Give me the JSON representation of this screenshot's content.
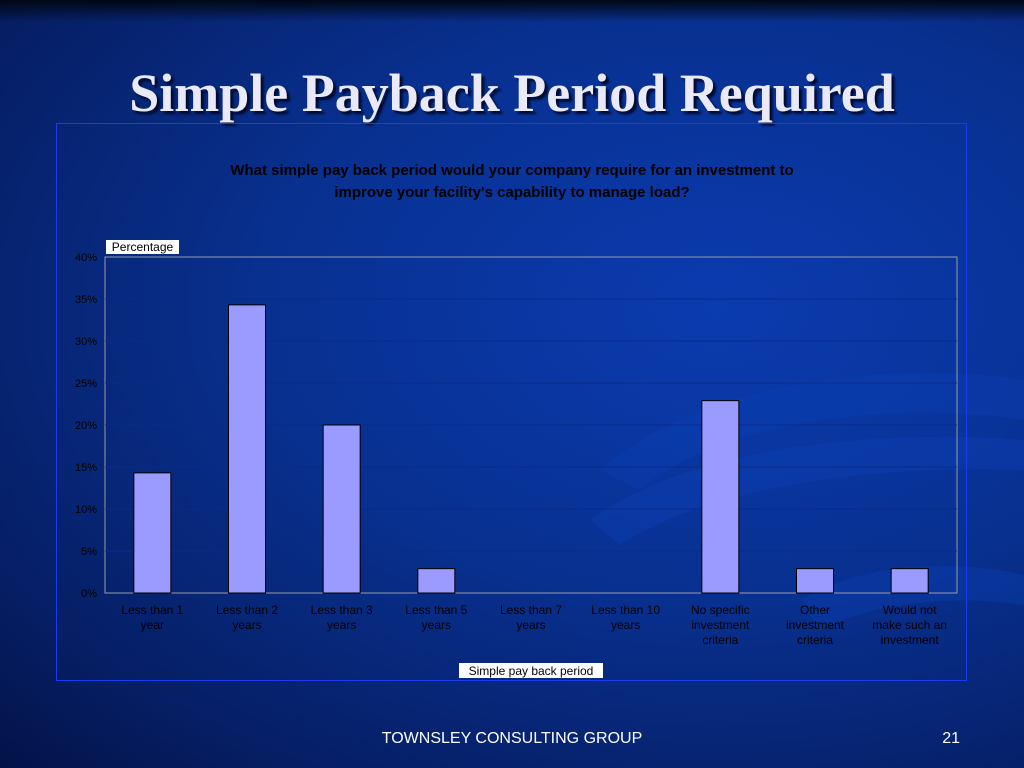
{
  "slide": {
    "title": "Simple Payback Period Required",
    "footer": "TOWNSLEY CONSULTING GROUP",
    "page_number": "21"
  },
  "colors": {
    "bar_fill": "#9a9aff",
    "bar_stroke": "#000000",
    "frame": "#1a3cf0",
    "background": "#08308f"
  },
  "chart_data": {
    "type": "bar",
    "title_lines": [
      "What simple pay back period would your company require for an investment to",
      "improve your facility's capability to manage load?"
    ],
    "ylabel": "Percentage",
    "xlabel": "Simple pay back period",
    "ylim": [
      0,
      40
    ],
    "yticks": [
      0,
      5,
      10,
      15,
      20,
      25,
      30,
      35,
      40
    ],
    "ytick_labels": [
      "0%",
      "5%",
      "10%",
      "15%",
      "20%",
      "25%",
      "30%",
      "35%",
      "40%"
    ],
    "grid": true,
    "categories": [
      [
        "Less than 1",
        "year"
      ],
      [
        "Less than 2",
        "years"
      ],
      [
        "Less than 3",
        "years"
      ],
      [
        "Less than 5",
        "years"
      ],
      [
        "Less than 7",
        "years"
      ],
      [
        "Less than 10",
        "years"
      ],
      [
        "No specific",
        "investment",
        "criteria"
      ],
      [
        "Other",
        "investment",
        "criteria"
      ],
      [
        "Would not",
        "make such an",
        "investment"
      ]
    ],
    "values": [
      14.3,
      34.3,
      20.0,
      2.9,
      0,
      0,
      22.9,
      2.9,
      2.9
    ]
  }
}
